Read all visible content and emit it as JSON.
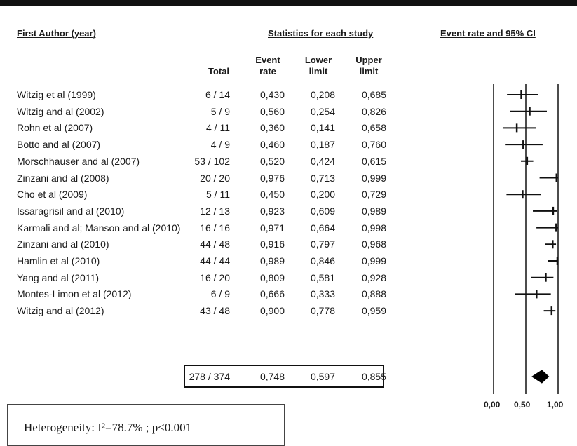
{
  "headers": {
    "first_author": "First Author (year)",
    "statistics": "Statistics for each study",
    "event_rate_ci": "Event rate and 95% CI",
    "total": "Total",
    "event_rate_line1": "Event",
    "event_rate_line2": "rate",
    "lower_line1": "Lower",
    "lower_line2": "limit",
    "upper_line1": "Upper",
    "upper_line2": "limit"
  },
  "studies": [
    {
      "author": "Witzig et al (1999)",
      "total": "6 / 14",
      "rate": "0,430",
      "lower": "0,208",
      "upper": "0,685"
    },
    {
      "author": "Witzig and al (2002)",
      "total": "5 / 9",
      "rate": "0,560",
      "lower": "0,254",
      "upper": "0,826"
    },
    {
      "author": "Rohn et al (2007)",
      "total": "4 / 11",
      "rate": "0,360",
      "lower": "0,141",
      "upper": "0,658"
    },
    {
      "author": "Botto and al (2007)",
      "total": "4 / 9",
      "rate": "0,460",
      "lower": "0,187",
      "upper": "0,760"
    },
    {
      "author": "Morschhauser and al (2007)",
      "total": "53 / 102",
      "rate": "0,520",
      "lower": "0,424",
      "upper": "0,615"
    },
    {
      "author": "Zinzani and al (2008)",
      "total": "20 / 20",
      "rate": "0,976",
      "lower": "0,713",
      "upper": "0,999"
    },
    {
      "author": "Cho et al (2009)",
      "total": "5 / 11",
      "rate": "0,450",
      "lower": "0,200",
      "upper": "0,729"
    },
    {
      "author": "Issaragrisil and al (2010)",
      "total": "12 / 13",
      "rate": "0,923",
      "lower": "0,609",
      "upper": "0,989"
    },
    {
      "author": "Karmali and al; Manson and al (2010)",
      "total": "16 / 16",
      "rate": "0,971",
      "lower": "0,664",
      "upper": "0,998"
    },
    {
      "author": "Zinzani and al (2010)",
      "total": "44 / 48",
      "rate": "0,916",
      "lower": "0,797",
      "upper": "0,968"
    },
    {
      "author": "Hamlin et al (2010)",
      "total": "44 / 44",
      "rate": "0,989",
      "lower": "0,846",
      "upper": "0,999"
    },
    {
      "author": "Yang and al (2011)",
      "total": "16 / 20",
      "rate": "0,809",
      "lower": "0,581",
      "upper": "0,928"
    },
    {
      "author": "Montes-Limon et al (2012)",
      "total": "6 / 9",
      "rate": "0,666",
      "lower": "0,333",
      "upper": "0,888"
    },
    {
      "author": "Witzig and al (2012)",
      "total": "43 / 48",
      "rate": "0,900",
      "lower": "0,778",
      "upper": "0,959"
    }
  ],
  "summary": {
    "total": "278 / 374",
    "rate": "0,748",
    "lower": "0,597",
    "upper": "0,855"
  },
  "heterogeneity": "Heterogeneity: I²=78.7% ; p<0.001",
  "axis_ticks": [
    "0,00",
    "0,50",
    "1,00"
  ],
  "chart_data": {
    "type": "forest",
    "title": "Event rate and 95% CI",
    "xlim": [
      0,
      1
    ],
    "x_ticks": [
      0,
      0.5,
      1
    ],
    "studies": [
      {
        "label": "Witzig et al (1999)",
        "rate": 0.43,
        "lower": 0.208,
        "upper": 0.685
      },
      {
        "label": "Witzig and al (2002)",
        "rate": 0.56,
        "lower": 0.254,
        "upper": 0.826
      },
      {
        "label": "Rohn et al (2007)",
        "rate": 0.36,
        "lower": 0.141,
        "upper": 0.658
      },
      {
        "label": "Botto and al (2007)",
        "rate": 0.46,
        "lower": 0.187,
        "upper": 0.76
      },
      {
        "label": "Morschhauser and al (2007)",
        "rate": 0.52,
        "lower": 0.424,
        "upper": 0.615
      },
      {
        "label": "Zinzani and al (2008)",
        "rate": 0.976,
        "lower": 0.713,
        "upper": 0.999
      },
      {
        "label": "Cho et al (2009)",
        "rate": 0.45,
        "lower": 0.2,
        "upper": 0.729
      },
      {
        "label": "Issaragrisil and al (2010)",
        "rate": 0.923,
        "lower": 0.609,
        "upper": 0.989
      },
      {
        "label": "Karmali and al; Manson and al (2010)",
        "rate": 0.971,
        "lower": 0.664,
        "upper": 0.998
      },
      {
        "label": "Zinzani and al (2010)",
        "rate": 0.916,
        "lower": 0.797,
        "upper": 0.968
      },
      {
        "label": "Hamlin et al (2010)",
        "rate": 0.989,
        "lower": 0.846,
        "upper": 0.999
      },
      {
        "label": "Yang and al (2011)",
        "rate": 0.809,
        "lower": 0.581,
        "upper": 0.928
      },
      {
        "label": "Montes-Limon et al (2012)",
        "rate": 0.666,
        "lower": 0.333,
        "upper": 0.888
      },
      {
        "label": "Witzig and al (2012)",
        "rate": 0.9,
        "lower": 0.778,
        "upper": 0.959
      }
    ],
    "pooled": {
      "rate": 0.748,
      "lower": 0.597,
      "upper": 0.855
    }
  }
}
